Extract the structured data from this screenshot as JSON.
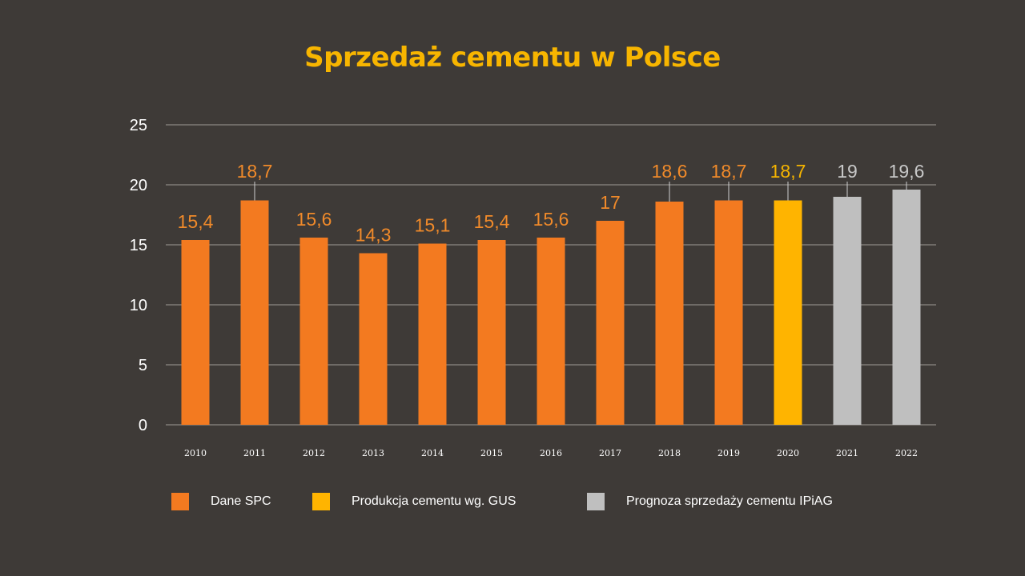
{
  "chart_data": {
    "type": "bar",
    "title": "Sprzedaż cementu w Polsce",
    "title_color": "#f7b500",
    "categories": [
      "2010",
      "2011",
      "2012",
      "2013",
      "2014",
      "2015",
      "2016",
      "2017",
      "2018",
      "2019",
      "2020",
      "2021",
      "2022"
    ],
    "values": [
      15.4,
      18.7,
      15.6,
      14.3,
      15.1,
      15.4,
      15.6,
      17,
      18.6,
      18.7,
      18.7,
      19,
      19.6
    ],
    "data_labels": [
      "15,4",
      "18,7",
      "15,6",
      "14,3",
      "15,1",
      "15,4",
      "15,6",
      "17",
      "18,6",
      "18,7",
      "18,7",
      "19",
      "19,6"
    ],
    "bar_series": [
      0,
      0,
      0,
      0,
      0,
      0,
      0,
      0,
      0,
      0,
      1,
      2,
      2
    ],
    "series": [
      {
        "name": "Dane SPC",
        "color": "#f37a20",
        "label_color": "#f08a2a"
      },
      {
        "name": "Produkcja cementu wg. GUS",
        "color": "#ffb400",
        "label_color": "#f5b400"
      },
      {
        "name": "Prognoza sprzedaży cementu IPiAG",
        "color": "#bfbfbf",
        "label_color": "#c8c8c8"
      }
    ],
    "ylim": [
      0,
      25
    ],
    "yticks": [
      "0",
      "5",
      "10",
      "15",
      "20",
      "25"
    ],
    "xlabel": "",
    "ylabel": "",
    "grid": true,
    "legend_position": "bottom"
  }
}
